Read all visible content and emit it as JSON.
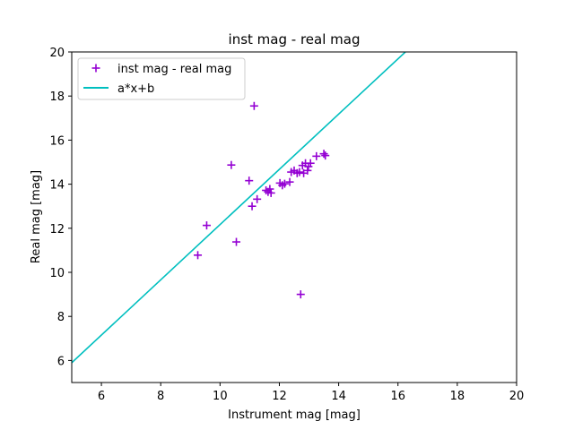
{
  "chart_data": {
    "type": "scatter",
    "title": "inst mag - real mag",
    "xlabel": "Instrument mag [mag]",
    "ylabel": "Real mag [mag]",
    "xlim": [
      5,
      20
    ],
    "ylim": [
      5,
      20
    ],
    "xticks": [
      6,
      8,
      10,
      12,
      14,
      16,
      18,
      20
    ],
    "yticks": [
      6,
      8,
      10,
      12,
      14,
      16,
      18,
      20
    ],
    "grid": false,
    "legend_position": "top-left",
    "series": [
      {
        "name": "inst mag - real mag",
        "kind": "scatter",
        "marker": "plus",
        "color": "#9400d3",
        "points": [
          [
            9.25,
            10.78
          ],
          [
            9.55,
            12.13
          ],
          [
            10.38,
            14.87
          ],
          [
            10.55,
            11.38
          ],
          [
            10.98,
            14.16
          ],
          [
            11.08,
            13.0
          ],
          [
            11.15,
            17.55
          ],
          [
            11.25,
            13.32
          ],
          [
            11.55,
            13.72
          ],
          [
            11.62,
            13.65
          ],
          [
            11.68,
            13.78
          ],
          [
            11.72,
            13.6
          ],
          [
            12.02,
            14.05
          ],
          [
            12.1,
            13.95
          ],
          [
            12.18,
            14.02
          ],
          [
            12.35,
            14.1
          ],
          [
            12.4,
            14.55
          ],
          [
            12.5,
            14.62
          ],
          [
            12.6,
            14.5
          ],
          [
            12.68,
            14.55
          ],
          [
            12.72,
            9.0
          ],
          [
            12.78,
            14.85
          ],
          [
            12.82,
            14.5
          ],
          [
            12.88,
            14.95
          ],
          [
            12.95,
            14.62
          ],
          [
            12.98,
            14.8
          ],
          [
            13.05,
            14.95
          ],
          [
            13.25,
            15.27
          ],
          [
            13.5,
            15.38
          ],
          [
            13.55,
            15.3
          ]
        ]
      },
      {
        "name": "a*x+b",
        "kind": "line",
        "color": "#00bfbf",
        "x": [
          5,
          16.25
        ],
        "y": [
          5.9,
          20
        ]
      }
    ]
  }
}
